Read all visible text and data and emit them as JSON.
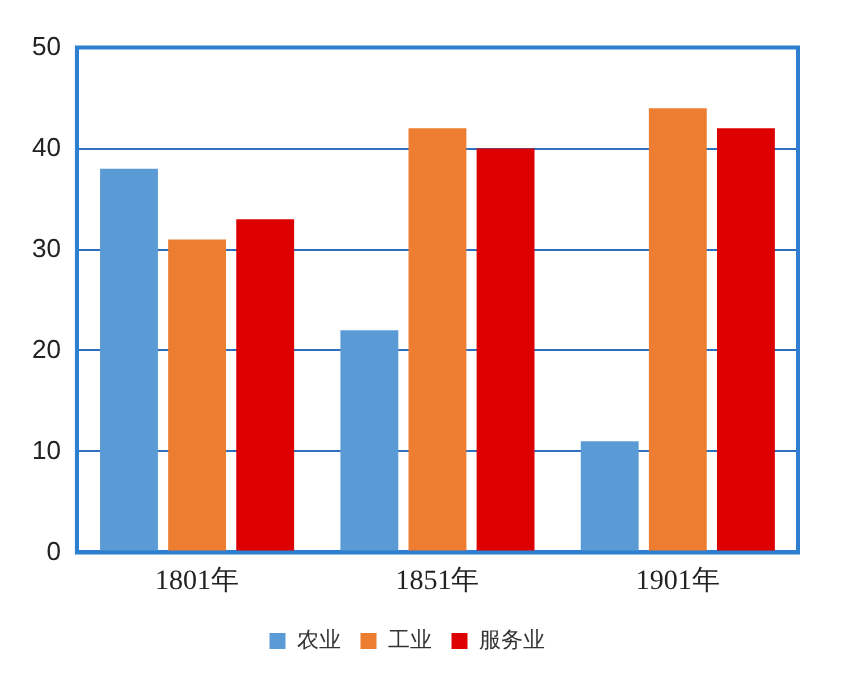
{
  "chart_data": {
    "type": "bar",
    "categories": [
      "1801年",
      "1851年",
      "1901年"
    ],
    "series": [
      {
        "name": "农业",
        "color": "#5b9bd5",
        "values": [
          38,
          22,
          11
        ]
      },
      {
        "name": "工业",
        "color": "#ed7d31",
        "values": [
          31,
          42,
          44
        ]
      },
      {
        "name": "服务业",
        "color": "#dd0000",
        "values": [
          33,
          40,
          42
        ]
      }
    ],
    "ylim": [
      0,
      50
    ],
    "yticks": [
      0,
      10,
      20,
      30,
      40,
      50
    ],
    "grid": "y",
    "legend": "bottom"
  }
}
